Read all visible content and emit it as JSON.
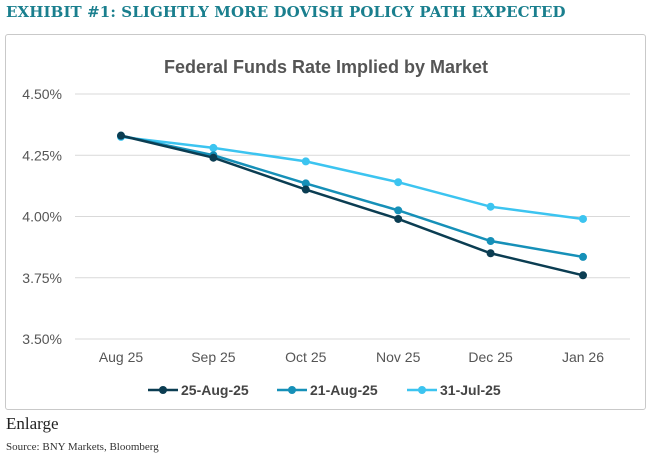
{
  "header": {
    "exhibit_title": "EXHIBIT #1: SLIGHTLY MORE DOVISH POLICY PATH EXPECTED"
  },
  "footer": {
    "enlarge_label": "Enlarge",
    "source": "Source: BNY Markets, Bloomberg"
  },
  "chart_data": {
    "type": "line",
    "title": "Federal Funds Rate Implied by Market",
    "xlabel": "",
    "ylabel": "",
    "categories": [
      "Aug 25",
      "Sep 25",
      "Oct 25",
      "Nov 25",
      "Dec 25",
      "Jan 26"
    ],
    "ylim": [
      3.5,
      4.5
    ],
    "yticks": [
      3.5,
      3.75,
      4.0,
      4.25,
      4.5
    ],
    "ytick_labels": [
      "3.50%",
      "3.75%",
      "4.00%",
      "4.25%",
      "4.50%"
    ],
    "grid": true,
    "legend_position": "bottom",
    "series": [
      {
        "name": "25-Aug-25",
        "color": "#0b3d52",
        "values": [
          4.33,
          4.24,
          4.11,
          3.99,
          3.85,
          3.76
        ]
      },
      {
        "name": "21-Aug-25",
        "color": "#1690b8",
        "values": [
          4.33,
          4.25,
          4.135,
          4.025,
          3.9,
          3.835
        ]
      },
      {
        "name": "31-Jul-25",
        "color": "#3cc4f0",
        "values": [
          4.325,
          4.28,
          4.225,
          4.14,
          4.04,
          3.99
        ]
      }
    ]
  }
}
